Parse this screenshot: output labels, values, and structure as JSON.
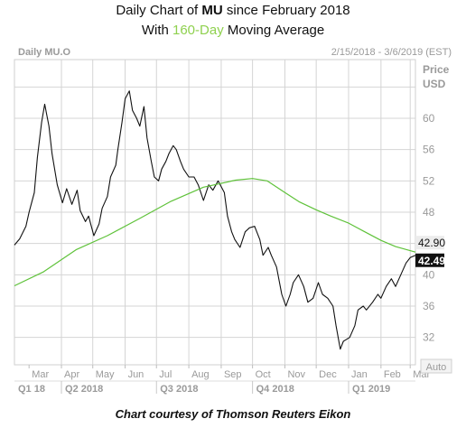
{
  "header": {
    "line1_pre": "Daily Chart of ",
    "line1_bold": "MU",
    "line1_post": " since February 2018",
    "line2_pre": "With ",
    "line2_accent": "160-Day",
    "line2_post": " Moving Average"
  },
  "footer": {
    "credit": "Chart courtesy of Thomson Reuters Eikon"
  },
  "colors": {
    "price_line": "#111111",
    "moving_average": "#5fc23a",
    "accent_text": "#8fd14f",
    "grid": "#d4d4d4",
    "axis_text": "#9a9a9a",
    "ma_tag_bg": "#ececec",
    "price_tag_bg": "#111111"
  },
  "chart_data": {
    "type": "line",
    "symbol_label": "Daily MU.O",
    "date_range_label": "2/15/2018 - 3/6/2019 (EST)",
    "y_axis_title": "Price",
    "y_axis_unit": "USD",
    "auto_button": "Auto",
    "ylim": [
      28.5,
      67.5
    ],
    "y_ticks": [
      32,
      36,
      40,
      44,
      48,
      52,
      56,
      60,
      64
    ],
    "y_tick_labels": [
      "32",
      "36",
      "40",
      "",
      "48",
      "52",
      "56",
      "60",
      ""
    ],
    "x_range": [
      "2018-02-15",
      "2019-03-06"
    ],
    "month_ticks": [
      {
        "label": "Mar",
        "date": "2018-03-01"
      },
      {
        "label": "Apr",
        "date": "2018-04-01"
      },
      {
        "label": "May",
        "date": "2018-05-01"
      },
      {
        "label": "Jun",
        "date": "2018-06-01"
      },
      {
        "label": "Jul",
        "date": "2018-07-01"
      },
      {
        "label": "Aug",
        "date": "2018-08-01"
      },
      {
        "label": "Sep",
        "date": "2018-09-01"
      },
      {
        "label": "Oct",
        "date": "2018-10-01"
      },
      {
        "label": "Nov",
        "date": "2018-11-01"
      },
      {
        "label": "Dec",
        "date": "2018-12-01"
      },
      {
        "label": "Jan",
        "date": "2019-01-01"
      },
      {
        "label": "Feb",
        "date": "2019-02-01"
      },
      {
        "label": "Mar",
        "date": "2019-03-01"
      }
    ],
    "quarters": [
      {
        "label": "Q1 18",
        "start": "2018-02-15",
        "end": "2018-04-01"
      },
      {
        "label": "Q2 2018",
        "start": "2018-04-01",
        "end": "2018-07-01"
      },
      {
        "label": "Q3 2018",
        "start": "2018-07-01",
        "end": "2018-10-01"
      },
      {
        "label": "Q4 2018",
        "start": "2018-10-01",
        "end": "2019-01-01"
      },
      {
        "label": "Q1 2019",
        "start": "2019-01-01",
        "end": "2019-03-06"
      }
    ],
    "series": [
      {
        "name": "MU",
        "last_value": "42.49",
        "points": [
          [
            "2018-02-15",
            43.8
          ],
          [
            "2018-02-20",
            44.6
          ],
          [
            "2018-02-26",
            46.2
          ],
          [
            "2018-03-01",
            48.0
          ],
          [
            "2018-03-06",
            50.5
          ],
          [
            "2018-03-09",
            55.0
          ],
          [
            "2018-03-13",
            59.5
          ],
          [
            "2018-03-16",
            61.8
          ],
          [
            "2018-03-20",
            59.0
          ],
          [
            "2018-03-23",
            55.5
          ],
          [
            "2018-03-28",
            51.5
          ],
          [
            "2018-04-02",
            49.2
          ],
          [
            "2018-04-06",
            51.0
          ],
          [
            "2018-04-11",
            49.0
          ],
          [
            "2018-04-16",
            50.8
          ],
          [
            "2018-04-19",
            48.2
          ],
          [
            "2018-04-24",
            46.8
          ],
          [
            "2018-04-27",
            47.5
          ],
          [
            "2018-05-02",
            45.0
          ],
          [
            "2018-05-07",
            46.5
          ],
          [
            "2018-05-10",
            48.5
          ],
          [
            "2018-05-15",
            50.0
          ],
          [
            "2018-05-18",
            52.5
          ],
          [
            "2018-05-23",
            54.0
          ],
          [
            "2018-05-25",
            56.0
          ],
          [
            "2018-05-29",
            59.5
          ],
          [
            "2018-06-01",
            62.5
          ],
          [
            "2018-06-05",
            63.5
          ],
          [
            "2018-06-08",
            61.0
          ],
          [
            "2018-06-12",
            60.0
          ],
          [
            "2018-06-15",
            59.0
          ],
          [
            "2018-06-19",
            61.5
          ],
          [
            "2018-06-22",
            57.5
          ],
          [
            "2018-06-26",
            54.5
          ],
          [
            "2018-06-29",
            52.5
          ],
          [
            "2018-07-03",
            52.0
          ],
          [
            "2018-07-06",
            53.5
          ],
          [
            "2018-07-10",
            54.5
          ],
          [
            "2018-07-13",
            55.5
          ],
          [
            "2018-07-17",
            56.5
          ],
          [
            "2018-07-20",
            56.0
          ],
          [
            "2018-07-24",
            54.5
          ],
          [
            "2018-07-27",
            53.5
          ],
          [
            "2018-08-01",
            52.5
          ],
          [
            "2018-08-06",
            52.5
          ],
          [
            "2018-08-10",
            51.5
          ],
          [
            "2018-08-15",
            49.5
          ],
          [
            "2018-08-20",
            51.5
          ],
          [
            "2018-08-24",
            50.8
          ],
          [
            "2018-08-29",
            52.0
          ],
          [
            "2018-09-04",
            50.5
          ],
          [
            "2018-09-07",
            47.5
          ],
          [
            "2018-09-11",
            45.5
          ],
          [
            "2018-09-14",
            44.5
          ],
          [
            "2018-09-19",
            43.5
          ],
          [
            "2018-09-24",
            45.5
          ],
          [
            "2018-09-28",
            46.0
          ],
          [
            "2018-10-03",
            46.2
          ],
          [
            "2018-10-08",
            44.5
          ],
          [
            "2018-10-11",
            42.5
          ],
          [
            "2018-10-16",
            43.5
          ],
          [
            "2018-10-19",
            42.5
          ],
          [
            "2018-10-24",
            41.0
          ],
          [
            "2018-10-29",
            37.5
          ],
          [
            "2018-11-02",
            36.0
          ],
          [
            "2018-11-06",
            37.5
          ],
          [
            "2018-11-09",
            39.0
          ],
          [
            "2018-11-14",
            40.0
          ],
          [
            "2018-11-19",
            38.5
          ],
          [
            "2018-11-23",
            36.5
          ],
          [
            "2018-11-28",
            37.0
          ],
          [
            "2018-12-03",
            39.0
          ],
          [
            "2018-12-07",
            37.5
          ],
          [
            "2018-12-12",
            37.0
          ],
          [
            "2018-12-17",
            36.0
          ],
          [
            "2018-12-20",
            33.5
          ],
          [
            "2018-12-24",
            30.5
          ],
          [
            "2018-12-27",
            31.5
          ],
          [
            "2019-01-02",
            32.0
          ],
          [
            "2019-01-07",
            33.5
          ],
          [
            "2019-01-10",
            35.5
          ],
          [
            "2019-01-15",
            36.0
          ],
          [
            "2019-01-18",
            35.5
          ],
          [
            "2019-01-24",
            36.5
          ],
          [
            "2019-01-29",
            37.5
          ],
          [
            "2019-02-01",
            37.0
          ],
          [
            "2019-02-06",
            38.5
          ],
          [
            "2019-02-11",
            39.5
          ],
          [
            "2019-02-15",
            38.5
          ],
          [
            "2019-02-20",
            40.0
          ],
          [
            "2019-02-25",
            41.5
          ],
          [
            "2019-03-01",
            42.2
          ],
          [
            "2019-03-06",
            42.49
          ]
        ]
      },
      {
        "name": "160-Day Moving Average",
        "last_value": "42.90",
        "points": [
          [
            "2018-02-15",
            38.6
          ],
          [
            "2018-03-15",
            40.4
          ],
          [
            "2018-04-15",
            43.2
          ],
          [
            "2018-05-15",
            45.0
          ],
          [
            "2018-06-15",
            47.2
          ],
          [
            "2018-07-15",
            49.4
          ],
          [
            "2018-08-15",
            51.2
          ],
          [
            "2018-09-15",
            52.1
          ],
          [
            "2018-10-01",
            52.3
          ],
          [
            "2018-10-15",
            52.0
          ],
          [
            "2018-11-01",
            50.5
          ],
          [
            "2018-11-15",
            49.3
          ],
          [
            "2018-12-01",
            48.3
          ],
          [
            "2018-12-15",
            47.5
          ],
          [
            "2019-01-01",
            46.6
          ],
          [
            "2019-01-15",
            45.6
          ],
          [
            "2019-02-01",
            44.4
          ],
          [
            "2019-02-15",
            43.6
          ],
          [
            "2019-03-06",
            42.9
          ]
        ]
      }
    ]
  }
}
